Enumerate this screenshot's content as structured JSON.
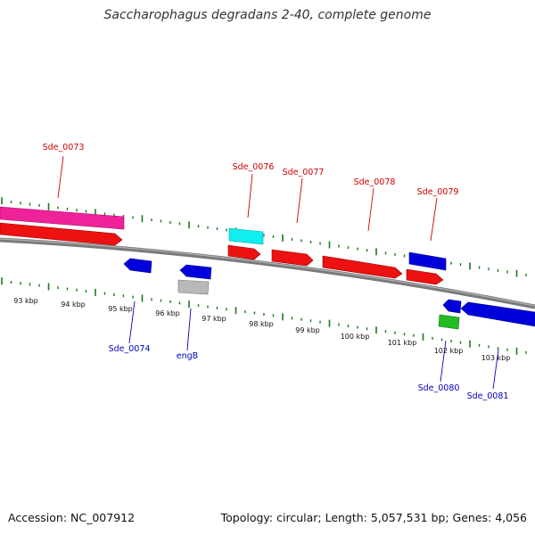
{
  "title": "Saccharophagus degradans 2-40, complete genome",
  "footer": {
    "accession": "Accession: NC_007912",
    "summary": "Topology: circular; Length: 5,057,531 bp; Genes: 4,056"
  },
  "colors": {
    "tick": "#1a7a1a",
    "backbone": "#7a7a7a",
    "forward_label": "#cc0000",
    "reverse_label": "#0000bb",
    "red_gene": "#ee1111",
    "blue_gene": "#0000dd",
    "pink_gene": "#ee2299",
    "cyan_gene": "#11eeee",
    "gray_gene": "#b8b8b8",
    "green_gene": "#22bb22"
  },
  "kbp_ruler": [
    "93 kbp",
    "94 kbp",
    "95 kbp",
    "96 kbp",
    "97 kbp",
    "98 kbp",
    "99 kbp",
    "100 kbp",
    "101 kbp",
    "102 kbp",
    "103 kbp"
  ],
  "gene_labels": {
    "forward": [
      "Sde_0073",
      "Sde_0076",
      "Sde_0077",
      "Sde_0078",
      "Sde_0079"
    ],
    "reverse": [
      "Sde_0074",
      "engB",
      "Sde_0080",
      "Sde_0081"
    ]
  }
}
